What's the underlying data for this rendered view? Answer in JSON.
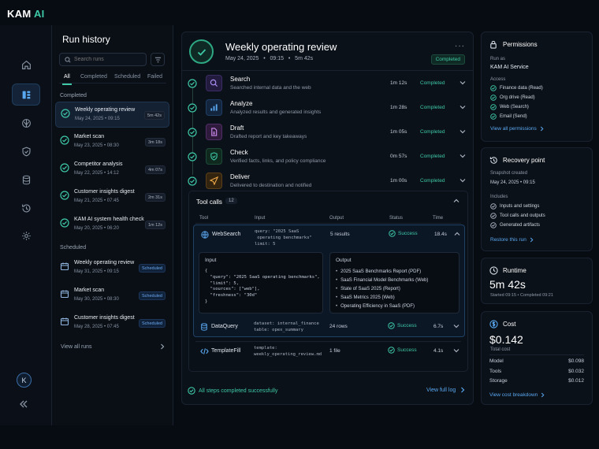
{
  "app": {
    "brand": "KAM",
    "brand_accent": "AI"
  },
  "rail": {
    "items": [
      {
        "name": "home-icon"
      },
      {
        "name": "runs-icon",
        "active": true
      },
      {
        "name": "brain-icon"
      },
      {
        "name": "shield-icon"
      },
      {
        "name": "database-icon"
      },
      {
        "name": "history-icon"
      },
      {
        "name": "gear-icon"
      }
    ],
    "avatar_initial": "K"
  },
  "runs": {
    "title": "Run history",
    "search_placeholder": "Search runs",
    "tabs": [
      "All",
      "Completed",
      "Scheduled",
      "Failed"
    ],
    "completed_label": "Completed",
    "scheduled_label": "Scheduled",
    "completed": [
      {
        "title": "Weekly operating review",
        "date": "May 24, 2025  •  09:15",
        "dur": "5m 42s"
      },
      {
        "title": "Market scan",
        "date": "May 23, 2025  •  08:30",
        "dur": "3m 18s"
      },
      {
        "title": "Competitor analysis",
        "date": "May 22, 2025  •  14:12",
        "dur": "4m 07s"
      },
      {
        "title": "Customer insights digest",
        "date": "May 21, 2025  •  07:45",
        "dur": "2m 31s"
      },
      {
        "title": "KAM AI system health check",
        "date": "May 20, 2025  •  06:20",
        "dur": "1m 12s"
      }
    ],
    "scheduled": [
      {
        "title": "Weekly operating review",
        "date": "May 31, 2025  •  09:15",
        "badge": "Scheduled"
      },
      {
        "title": "Market scan",
        "date": "May 30, 2025  •  08:30",
        "badge": "Scheduled"
      },
      {
        "title": "Customer insights digest",
        "date": "May 28, 2025  •  07:45",
        "badge": "Scheduled"
      }
    ],
    "view_all": "View all runs"
  },
  "main": {
    "title": "Weekly operating review",
    "subtitle": "May 24, 2025   •   09:15   •   5m 42s",
    "status": "Completed",
    "steps": [
      {
        "name": "Search",
        "desc": "Searched internal data and the web",
        "dur": "1m 12s",
        "status": "Completed",
        "icon": "search-icon"
      },
      {
        "name": "Analyze",
        "desc": "Analyzed results and generated insights",
        "dur": "1m 28s",
        "status": "Completed",
        "icon": "bar-chart-icon"
      },
      {
        "name": "Draft",
        "desc": "Drafted report and key takeaways",
        "dur": "1m 05s",
        "status": "Completed",
        "icon": "document-icon"
      },
      {
        "name": "Check",
        "desc": "Verified facts, links, and policy compliance",
        "dur": "0m 57s",
        "status": "Completed",
        "icon": "shield-check-icon"
      },
      {
        "name": "Deliver",
        "desc": "Delivered to destination and notified",
        "dur": "1m 00s",
        "status": "Completed",
        "icon": "send-icon"
      }
    ],
    "tools": {
      "title": "Tool calls",
      "count": "12",
      "headers": [
        "Tool",
        "Input",
        "Output",
        "Status",
        "Time"
      ],
      "rows": [
        {
          "name": "WebSearch",
          "input": "query: \"2025 SaaS\n operating benchmarks\"\nlimit: 5",
          "output": "5 results",
          "status": "Success",
          "time": "18.4s"
        },
        {
          "name": "DataQuery",
          "input": "dataset: internal_finance\ntable: opex_summary",
          "output": "24 rows",
          "status": "Success",
          "time": "6.7s"
        },
        {
          "name": "TemplateFill",
          "input": "template:\nweekly_operating_review.md",
          "output": "1 file",
          "status": "Success",
          "time": "4.1s"
        }
      ],
      "input_label": "Input",
      "input_json": "{\n  \"query\": \"2025 SaaS operating benchmarks\",\n  \"limit\": 5,\n  \"sources\": [\"web\"],\n  \"freshness\": \"30d\"\n}",
      "output_label": "Output",
      "output_items": [
        "2025 SaaS Benchmarks Report (PDF)",
        "SaaS Financial Model Benchmarks (Web)",
        "State of SaaS 2025 (Report)",
        "SaaS Metrics 2025 (Web)",
        "Operating Efficiency in SaaS (PDF)"
      ]
    },
    "footer_ok": "All steps completed successfully",
    "footer_log": "View full log"
  },
  "permissions": {
    "title": "Permissions",
    "run_as_label": "Run as",
    "run_as": "KAM AI Service",
    "access_label": "Access",
    "access": [
      "Finance data (Read)",
      "Org drive (Read)",
      "Web (Search)",
      "Email (Send)"
    ],
    "link": "View all permissions"
  },
  "recovery": {
    "title": "Recovery point",
    "snapshot_label": "Snapshot created",
    "snapshot": "May 24, 2025  •  09:15",
    "includes_label": "Includes",
    "includes": [
      "Inputs and settings",
      "Tool calls and outputs",
      "Generated artifacts"
    ],
    "link": "Restore this run"
  },
  "runtime": {
    "title": "Runtime",
    "value": "5m 42s",
    "detail": "Started  09:15  •  Completed  09:21"
  },
  "cost": {
    "title": "Cost",
    "value": "$0.142",
    "total_label": "Total cost",
    "rows": [
      {
        "label": "Model",
        "value": "$0.098"
      },
      {
        "label": "Tools",
        "value": "$0.032"
      },
      {
        "label": "Storage",
        "value": "$0.012"
      }
    ],
    "link": "View cost breakdown"
  },
  "colors": {
    "accent_green": "#3ec9a7",
    "accent_blue": "#5aa8f0",
    "bg": "#070b12"
  }
}
